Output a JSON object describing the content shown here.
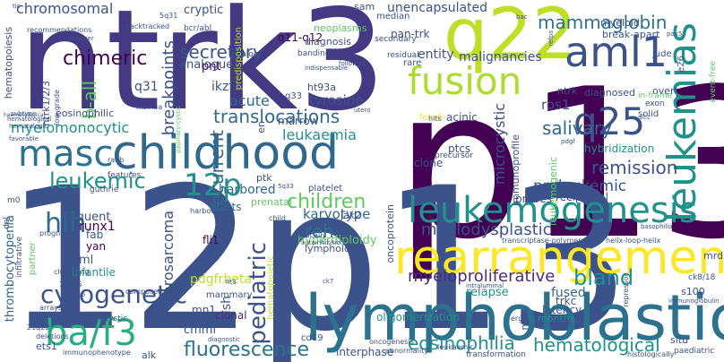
{
  "words": [
    {
      "text": "p13",
      "color": "#440154"
    },
    {
      "text": "12p13",
      "color": "#3b528b"
    },
    {
      "text": "ntrk3",
      "color": "#443983"
    },
    {
      "text": "lymphoblastic",
      "color": "#2c728e"
    },
    {
      "text": "q22",
      "color": "#bddf26"
    },
    {
      "text": "childhood",
      "color": "#31688e"
    },
    {
      "text": "rearrangement",
      "color": "#fde725"
    },
    {
      "text": "aml1",
      "color": "#3b528b"
    },
    {
      "text": "fusion",
      "color": "#addc30"
    },
    {
      "text": "leukemogenesis",
      "color": "#21918c"
    },
    {
      "text": "ba/f3",
      "color": "#28ae80"
    },
    {
      "text": "masc",
      "color": "#2c728e"
    },
    {
      "text": "leukemias",
      "color": "#21918c"
    },
    {
      "text": "q25",
      "color": "#3b528b"
    },
    {
      "text": "cytogenetic",
      "color": "#3b528b"
    },
    {
      "text": "12p",
      "color": "#21918c"
    },
    {
      "text": "leukemic",
      "color": "#21918c"
    },
    {
      "text": "mammaglobin",
      "color": "#2c728e"
    },
    {
      "text": "pediatric",
      "color": "#3b528b"
    },
    {
      "text": "hematological",
      "color": "#21918c"
    },
    {
      "text": "fluorescence",
      "color": "#2c728e"
    },
    {
      "text": "myelodysplastic",
      "color": "#3b528b"
    },
    {
      "text": "myeloproliferative",
      "color": "#472d7b"
    },
    {
      "text": "translocations",
      "color": "#31688e"
    },
    {
      "text": "eosinophilia",
      "color": "#21918c"
    },
    {
      "text": "hlh",
      "color": "#31688e"
    },
    {
      "text": "children",
      "color": "#5ec962"
    },
    {
      "text": "secretory",
      "color": "#3b528b"
    },
    {
      "text": "remission",
      "color": "#3b528b"
    },
    {
      "text": "salivary",
      "color": "#31688e"
    },
    {
      "text": "recurrent",
      "color": "#31688e"
    },
    {
      "text": "b-all",
      "color": "#5ec962"
    },
    {
      "text": "chimeric",
      "color": "#440154"
    },
    {
      "text": "chromosomal",
      "color": "#3b528b"
    },
    {
      "text": "leukaemia",
      "color": "#21918c"
    },
    {
      "text": "myelomonocytic",
      "color": "#21918c"
    },
    {
      "text": "breakpoints",
      "color": "#3b528b"
    },
    {
      "text": "reh",
      "color": "#2c728e"
    },
    {
      "text": "fibrosarcoma",
      "color": "#3b528b"
    },
    {
      "text": "bland",
      "color": "#21918c"
    },
    {
      "text": "preleukemic",
      "color": "#3b528b"
    },
    {
      "text": "microcystic",
      "color": "#3b528b"
    },
    {
      "text": "malignancies",
      "color": "#3b528b"
    },
    {
      "text": "karyotype",
      "color": "#31688e"
    },
    {
      "text": "runx1",
      "color": "#440154"
    },
    {
      "text": "acute",
      "color": "#31688e"
    },
    {
      "text": "tyrosine",
      "color": "#3b528b"
    },
    {
      "text": "ros1",
      "color": "#3b528b"
    },
    {
      "text": "fish",
      "color": "#3b528b"
    },
    {
      "text": "harbored",
      "color": "#31688e"
    },
    {
      "text": "fused",
      "color": "#31688e"
    },
    {
      "text": "thrombocytopenia",
      "color": "#31688e"
    },
    {
      "text": "relapse",
      "color": "#21918c"
    },
    {
      "text": "hyperdiploidy",
      "color": "#5ec962"
    },
    {
      "text": "unencapsulated",
      "color": "#3b528b"
    },
    {
      "text": "entity",
      "color": "#3b528b"
    },
    {
      "text": "pan-trk",
      "color": "#3b528b"
    },
    {
      "text": "q31",
      "color": "#3b528b"
    },
    {
      "text": "q11-q12",
      "color": "#440154"
    },
    {
      "text": "ikzf1",
      "color": "#3b528b"
    },
    {
      "text": "pnt",
      "color": "#440154"
    },
    {
      "text": "analogue",
      "color": "#3b528b"
    },
    {
      "text": "pdgfrbeta",
      "color": "#bddf26"
    },
    {
      "text": "cmml",
      "color": "#3b528b"
    },
    {
      "text": "oligomerization",
      "color": "#21918c"
    },
    {
      "text": "interphase",
      "color": "#3b528b"
    },
    {
      "text": "hybridization",
      "color": "#21918c"
    },
    {
      "text": "infantile",
      "color": "#21918c"
    },
    {
      "text": "aml",
      "color": "#3b528b"
    },
    {
      "text": "clonal",
      "color": "#472d7b"
    },
    {
      "text": "mn1",
      "color": "#3b528b"
    },
    {
      "text": "fli1",
      "color": "#440154"
    },
    {
      "text": "yan",
      "color": "#440154"
    },
    {
      "text": "fab",
      "color": "#3b528b"
    },
    {
      "text": "frequent",
      "color": "#3b528b"
    },
    {
      "text": "trkc",
      "color": "#3b528b"
    },
    {
      "text": "latency",
      "color": "#3b528b"
    },
    {
      "text": "blasts",
      "color": "#31688e"
    },
    {
      "text": "acinic",
      "color": "#3b528b"
    },
    {
      "text": "ptcs",
      "color": "#3b528b"
    },
    {
      "text": "clone",
      "color": "#3b528b"
    },
    {
      "text": "probes",
      "color": "#3b528b"
    },
    {
      "text": "reciprocal",
      "color": "#3b528b"
    },
    {
      "text": "cryptic",
      "color": "#3b528b"
    },
    {
      "text": "marrow",
      "color": "#3b528b"
    },
    {
      "text": "sam",
      "color": "#3b528b"
    },
    {
      "text": "diagnosis",
      "color": "#3b528b"
    },
    {
      "text": "neoplasms",
      "color": "#5ec962"
    },
    {
      "text": "myeloid",
      "color": "#3b528b"
    },
    {
      "text": "break-apart",
      "color": "#3b528b"
    },
    {
      "text": "diagnosed",
      "color": "#3b528b"
    },
    {
      "text": "overt",
      "color": "#3b528b"
    },
    {
      "text": "jude",
      "color": "#3b528b"
    },
    {
      "text": "ntrk",
      "color": "#3b528b"
    },
    {
      "text": "ht93a",
      "color": "#3b528b"
    },
    {
      "text": "eosinophilic",
      "color": "#3b528b"
    },
    {
      "text": "q33",
      "color": "#3b528b"
    },
    {
      "text": "ptk",
      "color": "#3b528b"
    },
    {
      "text": "prenatal",
      "color": "#5ec962"
    },
    {
      "text": "immunoprofile",
      "color": "#3b528b"
    },
    {
      "text": "leukemogenic",
      "color": "#5ec962"
    },
    {
      "text": "oncoprotein",
      "color": "#3b528b"
    },
    {
      "text": "lymphoid",
      "color": "#3b528b"
    },
    {
      "text": "jak2",
      "color": "#3b528b"
    },
    {
      "text": "mrd",
      "color": "#3b528b"
    },
    {
      "text": "months",
      "color": "#21918c"
    },
    {
      "text": "s100",
      "color": "#3b528b"
    },
    {
      "text": "mds",
      "color": "#3b528b"
    },
    {
      "text": "situ",
      "color": "#3b528b"
    },
    {
      "text": "ets1",
      "color": "#3b528b"
    },
    {
      "text": "alk",
      "color": "#3b528b"
    },
    {
      "text": "hematopoiesis",
      "color": "#3b528b"
    },
    {
      "text": "ntrk1/2/3",
      "color": "#3b528b"
    },
    {
      "text": "q13-q24",
      "color": "#3b528b"
    },
    {
      "text": "mammary",
      "color": "#3b528b"
    },
    {
      "text": "cd19",
      "color": "#3b528b"
    },
    {
      "text": "platelet",
      "color": "#3b528b"
    },
    {
      "text": "en",
      "color": "#3b528b"
    },
    {
      "text": "hematopoietic",
      "color": "#bddf26"
    },
    {
      "text": "fetv6",
      "color": "#fde725"
    },
    {
      "text": "exon",
      "color": "#3b528b"
    },
    {
      "text": "in-frame",
      "color": "#5ec962"
    },
    {
      "text": "solid",
      "color": "#3b528b"
    },
    {
      "text": "precursor",
      "color": "#3b528b"
    },
    {
      "text": "residual",
      "color": "#3b528b"
    },
    {
      "text": "rare",
      "color": "#3b528b"
    },
    {
      "text": "secondary",
      "color": "#3b528b"
    },
    {
      "text": "median",
      "color": "#3b528b"
    },
    {
      "text": "bcr/abl",
      "color": "#3b528b"
    },
    {
      "text": "backtracked",
      "color": "#3b528b"
    },
    {
      "text": "5q31",
      "color": "#3b528b"
    },
    {
      "text": "msin3a",
      "color": "#3b528b"
    },
    {
      "text": "analog",
      "color": "#3b528b"
    },
    {
      "text": "predisposition",
      "color": "#bddf26"
    },
    {
      "text": "banding",
      "color": "#3b528b"
    },
    {
      "text": "low-grade",
      "color": "#3b528b"
    },
    {
      "text": "recommendations",
      "color": "#3b528b"
    },
    {
      "text": "polymer",
      "color": "#3b528b"
    },
    {
      "text": "hematological",
      "color": "#3b528b"
    },
    {
      "text": "favorable",
      "color": "#3b528b"
    },
    {
      "text": "subtype",
      "color": "#3b528b"
    },
    {
      "text": "raeb",
      "color": "#3b528b"
    },
    {
      "text": "guthrie",
      "color": "#3b528b"
    },
    {
      "text": "features",
      "color": "#3b528b"
    },
    {
      "text": "germline",
      "color": "#3b528b"
    },
    {
      "text": "cdkn1b",
      "color": "#3b528b"
    },
    {
      "text": "m0",
      "color": "#3b528b"
    },
    {
      "text": "del",
      "color": "#3b528b"
    },
    {
      "text": "prognosis",
      "color": "#3b528b"
    },
    {
      "text": "infiltrative",
      "color": "#3b528b"
    },
    {
      "text": "partner",
      "color": "#5ec962"
    },
    {
      "text": "clustering",
      "color": "#3b528b"
    },
    {
      "text": "15q25",
      "color": "#3b528b"
    },
    {
      "text": "arrays",
      "color": "#3b528b"
    },
    {
      "text": "macrocystic",
      "color": "#3b528b"
    },
    {
      "text": "21q22",
      "color": "#3b528b"
    },
    {
      "text": "deletions",
      "color": "#3b528b"
    },
    {
      "text": "immunophenotype",
      "color": "#3b528b"
    },
    {
      "text": "diagnostic",
      "color": "#3b528b"
    },
    {
      "text": "composed",
      "color": "#3b528b"
    },
    {
      "text": "harbours",
      "color": "#3b528b"
    },
    {
      "text": "child",
      "color": "#3b528b"
    },
    {
      "text": "sterically",
      "color": "#3b528b"
    },
    {
      "text": "autoinhibition",
      "color": "#3b528b"
    },
    {
      "text": "oncogenesis",
      "color": "#3b528b"
    },
    {
      "text": "abnormality",
      "color": "#3b528b"
    },
    {
      "text": "leukaemic",
      "color": "#3b528b"
    },
    {
      "text": "transformation",
      "color": "#3b528b"
    },
    {
      "text": "transcriptase-polymerase",
      "color": "#3b528b"
    },
    {
      "text": "helix-loop-helix",
      "color": "#3b528b"
    },
    {
      "text": "histologically",
      "color": "#3b528b"
    },
    {
      "text": "paediatric",
      "color": "#3b528b"
    },
    {
      "text": "immunoglobulin",
      "color": "#3b528b"
    },
    {
      "text": "ck8/18",
      "color": "#3b528b"
    },
    {
      "text": "repressor",
      "color": "#3b528b"
    },
    {
      "text": "basophilia",
      "color": "#3b528b"
    },
    {
      "text": "e26",
      "color": "#3b528b"
    },
    {
      "text": "pax5",
      "color": "#3b528b"
    },
    {
      "text": "event-free",
      "color": "#5ec962"
    },
    {
      "text": "papillary-cystic",
      "color": "#5ec962"
    },
    {
      "text": "minimal",
      "color": "#3b528b"
    },
    {
      "text": "indispensable",
      "color": "#3b528b"
    },
    {
      "text": "hits",
      "color": "#3b528b"
    },
    {
      "text": "utero",
      "color": "#3b528b"
    },
    {
      "text": "follow-up",
      "color": "#3b528b"
    },
    {
      "text": "hematologic",
      "color": "#3b528b"
    },
    {
      "text": "cmvl",
      "color": "#3b528b"
    },
    {
      "text": "erg",
      "color": "#3b528b"
    },
    {
      "text": "intraluminal",
      "color": "#3b528b"
    },
    {
      "text": "aicc",
      "color": "#3b528b"
    },
    {
      "text": "5q33",
      "color": "#3b528b"
    },
    {
      "text": "fit3",
      "color": "#3b528b"
    },
    {
      "text": "ck7",
      "color": "#3b528b"
    },
    {
      "text": "q15",
      "color": "#3b528b"
    },
    {
      "text": "tic",
      "color": "#3b528b"
    },
    {
      "text": "bac",
      "color": "#3b528b"
    },
    {
      "text": "pdgf",
      "color": "#3b528b"
    },
    {
      "text": "refps",
      "color": "#3b528b"
    },
    {
      "text": "haematological",
      "color": "#3b528b"
    }
  ]
}
